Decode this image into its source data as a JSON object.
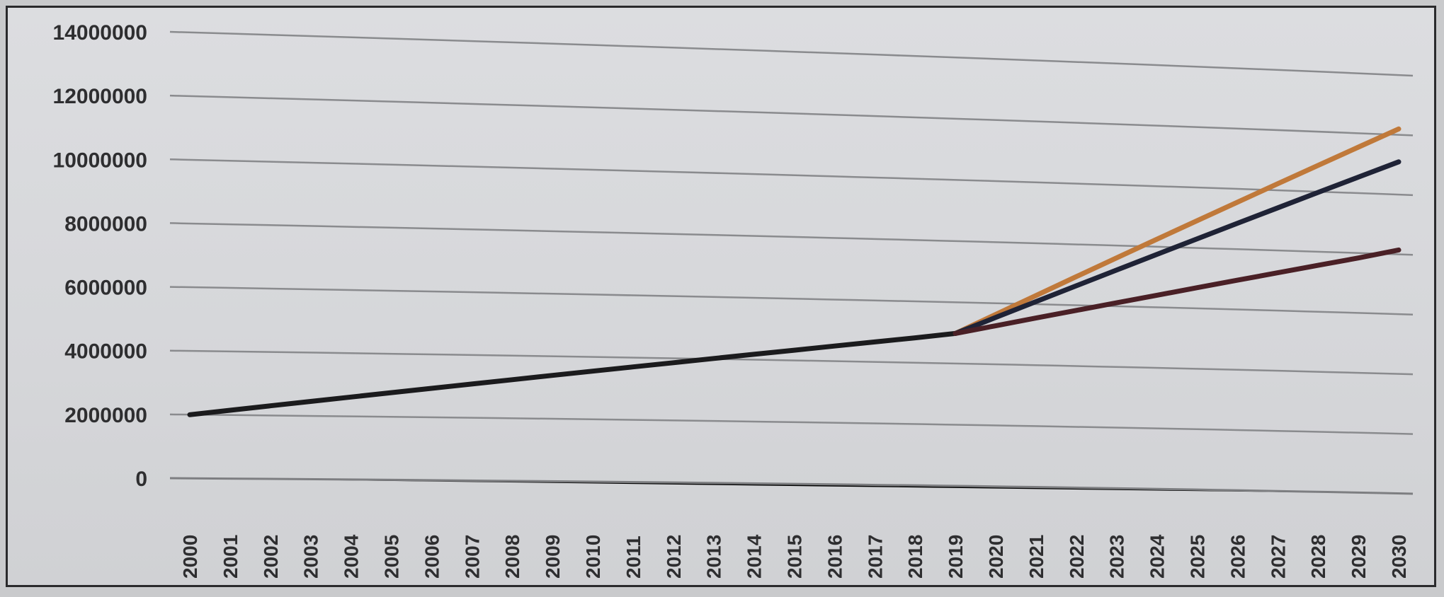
{
  "chart_data": {
    "type": "line",
    "title": "",
    "xlabel": "",
    "ylabel": "",
    "x": [
      "2000",
      "2001",
      "2002",
      "2003",
      "2004",
      "2005",
      "2006",
      "2007",
      "2008",
      "2009",
      "2010",
      "2011",
      "2012",
      "2013",
      "2014",
      "2015",
      "2016",
      "2017",
      "2018",
      "2019",
      "2020",
      "2021",
      "2022",
      "2023",
      "2024",
      "2025",
      "2026",
      "2027",
      "2028",
      "2029",
      "2030"
    ],
    "ylim": [
      0,
      14000000
    ],
    "yticks": [
      "0",
      "2000000",
      "4000000",
      "6000000",
      "8000000",
      "10000000",
      "12000000",
      "14000000"
    ],
    "grid": true,
    "legend": "none",
    "series": [
      {
        "color": "#1b1b1d",
        "values": [
          2000000,
          2160000,
          2320000,
          2480000,
          2640000,
          2800000,
          2960000,
          3120000,
          3280000,
          3440000,
          3600000,
          3760000,
          3920000,
          4080000,
          4240000,
          4400000,
          4560000,
          4720000,
          4880000,
          5050000,
          null,
          null,
          null,
          null,
          null,
          null,
          null,
          null,
          null,
          null,
          null
        ]
      },
      {
        "color": "#c0793a",
        "values": [
          null,
          null,
          null,
          null,
          null,
          null,
          null,
          null,
          null,
          null,
          null,
          null,
          null,
          null,
          null,
          null,
          null,
          null,
          null,
          5050000,
          5700000,
          6350000,
          7000000,
          7650000,
          8300000,
          8950000,
          9600000,
          10250000,
          10900000,
          11550000,
          12200000
        ]
      },
      {
        "color": "#1f2336",
        "values": [
          null,
          null,
          null,
          null,
          null,
          null,
          null,
          null,
          null,
          null,
          null,
          null,
          null,
          null,
          null,
          null,
          null,
          null,
          null,
          5050000,
          5600000,
          6150000,
          6700000,
          7250000,
          7800000,
          8350000,
          8900000,
          9450000,
          10000000,
          10550000,
          11100000
        ]
      },
      {
        "color": "#4a2026",
        "values": [
          null,
          null,
          null,
          null,
          null,
          null,
          null,
          null,
          null,
          null,
          null,
          null,
          null,
          null,
          null,
          null,
          null,
          null,
          null,
          5050000,
          5330000,
          5610000,
          5890000,
          6170000,
          6450000,
          6730000,
          7010000,
          7290000,
          7570000,
          7850000,
          8150000
        ]
      }
    ]
  }
}
